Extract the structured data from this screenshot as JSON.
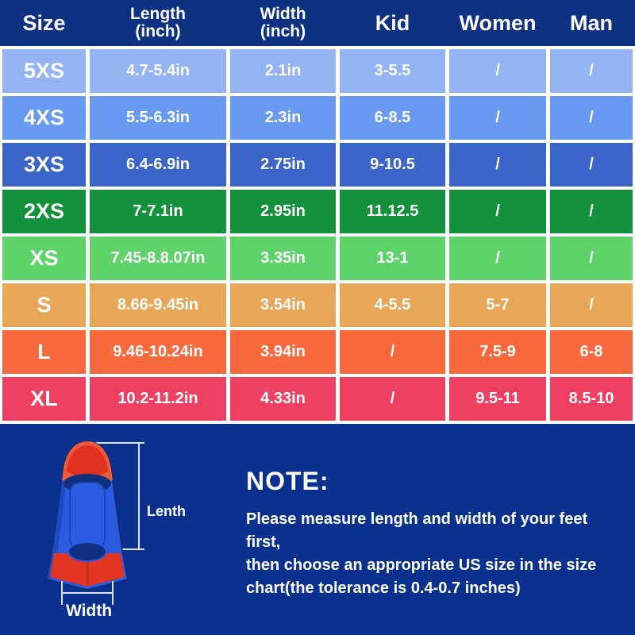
{
  "colors": {
    "header_bg": "#0f3181",
    "bottom_bg": "#0b318e",
    "gap_color": "#ffffff",
    "text_color": "#ffffff",
    "measure_line": "#dfe4f4",
    "fin_blue": "#2a5be0",
    "fin_red": "#e43522"
  },
  "table": {
    "headers": [
      {
        "label": "Size",
        "sub": ""
      },
      {
        "label": "Length",
        "sub": "(inch)"
      },
      {
        "label": "Width",
        "sub": "(inch)"
      },
      {
        "label": "Kid",
        "sub": ""
      },
      {
        "label": "Women",
        "sub": ""
      },
      {
        "label": "Man",
        "sub": ""
      }
    ],
    "rows": [
      {
        "size": "5XS",
        "length": "4.7-5.4in",
        "width": "2.1in",
        "kid": "3-5.5",
        "women": "/",
        "man": "/",
        "color": "#93b3f1"
      },
      {
        "size": "4XS",
        "length": "5.5-6.3in",
        "width": "2.3in",
        "kid": "6-8.5",
        "women": "/",
        "man": "/",
        "color": "#679af0"
      },
      {
        "size": "3XS",
        "length": "6.4-6.9in",
        "width": "2.75in",
        "kid": "9-10.5",
        "women": "/",
        "man": "/",
        "color": "#3c65c9"
      },
      {
        "size": "2XS",
        "length": "7-7.1in",
        "width": "2.95in",
        "kid": "11.12.5",
        "women": "/",
        "man": "/",
        "color": "#14913c"
      },
      {
        "size": "XS",
        "length": "7.45-8.8.07in",
        "width": "3.35in",
        "kid": "13-1",
        "women": "/",
        "man": "/",
        "color": "#5ed36a"
      },
      {
        "size": "S",
        "length": "8.66-9.45in",
        "width": "3.54in",
        "kid": "4-5.5",
        "women": "5-7",
        "man": "/",
        "color": "#e7a757"
      },
      {
        "size": "L",
        "length": "9.46-10.24in",
        "width": "3.94in",
        "kid": "/",
        "women": "7.5-9",
        "man": "6-8",
        "color": "#f9693e"
      },
      {
        "size": "XL",
        "length": "10.2-11.2in",
        "width": "4.33in",
        "kid": "/",
        "women": "9.5-11",
        "man": "8.5-10",
        "color": "#ee4063"
      }
    ]
  },
  "diagram": {
    "length_label": "Lenth",
    "width_label": "Width"
  },
  "note": {
    "title": "NOTE:",
    "lines": [
      "Please measure length and width of your feet first,",
      "then choose an appropriate US size in the size",
      "chart(the tolerance is 0.4-0.7 inches)"
    ]
  },
  "chart_data": {
    "type": "table",
    "title": "Swim fin size chart",
    "columns": [
      "Size",
      "Length (inch)",
      "Width (inch)",
      "Kid",
      "Women",
      "Man"
    ],
    "rows": [
      [
        "5XS",
        "4.7-5.4in",
        "2.1in",
        "3-5.5",
        "/",
        "/"
      ],
      [
        "4XS",
        "5.5-6.3in",
        "2.3in",
        "6-8.5",
        "/",
        "/"
      ],
      [
        "3XS",
        "6.4-6.9in",
        "2.75in",
        "9-10.5",
        "/",
        "/"
      ],
      [
        "2XS",
        "7-7.1in",
        "2.95in",
        "11.12.5",
        "/",
        "/"
      ],
      [
        "XS",
        "7.45-8.8.07in",
        "3.35in",
        "13-1",
        "/",
        "/"
      ],
      [
        "S",
        "8.66-9.45in",
        "3.54in",
        "4-5.5",
        "5-7",
        "/"
      ],
      [
        "L",
        "9.46-10.24in",
        "3.94in",
        "/",
        "7.5-9",
        "6-8"
      ],
      [
        "XL",
        "10.2-11.2in",
        "4.33in",
        "/",
        "9.5-11",
        "8.5-10"
      ]
    ]
  }
}
